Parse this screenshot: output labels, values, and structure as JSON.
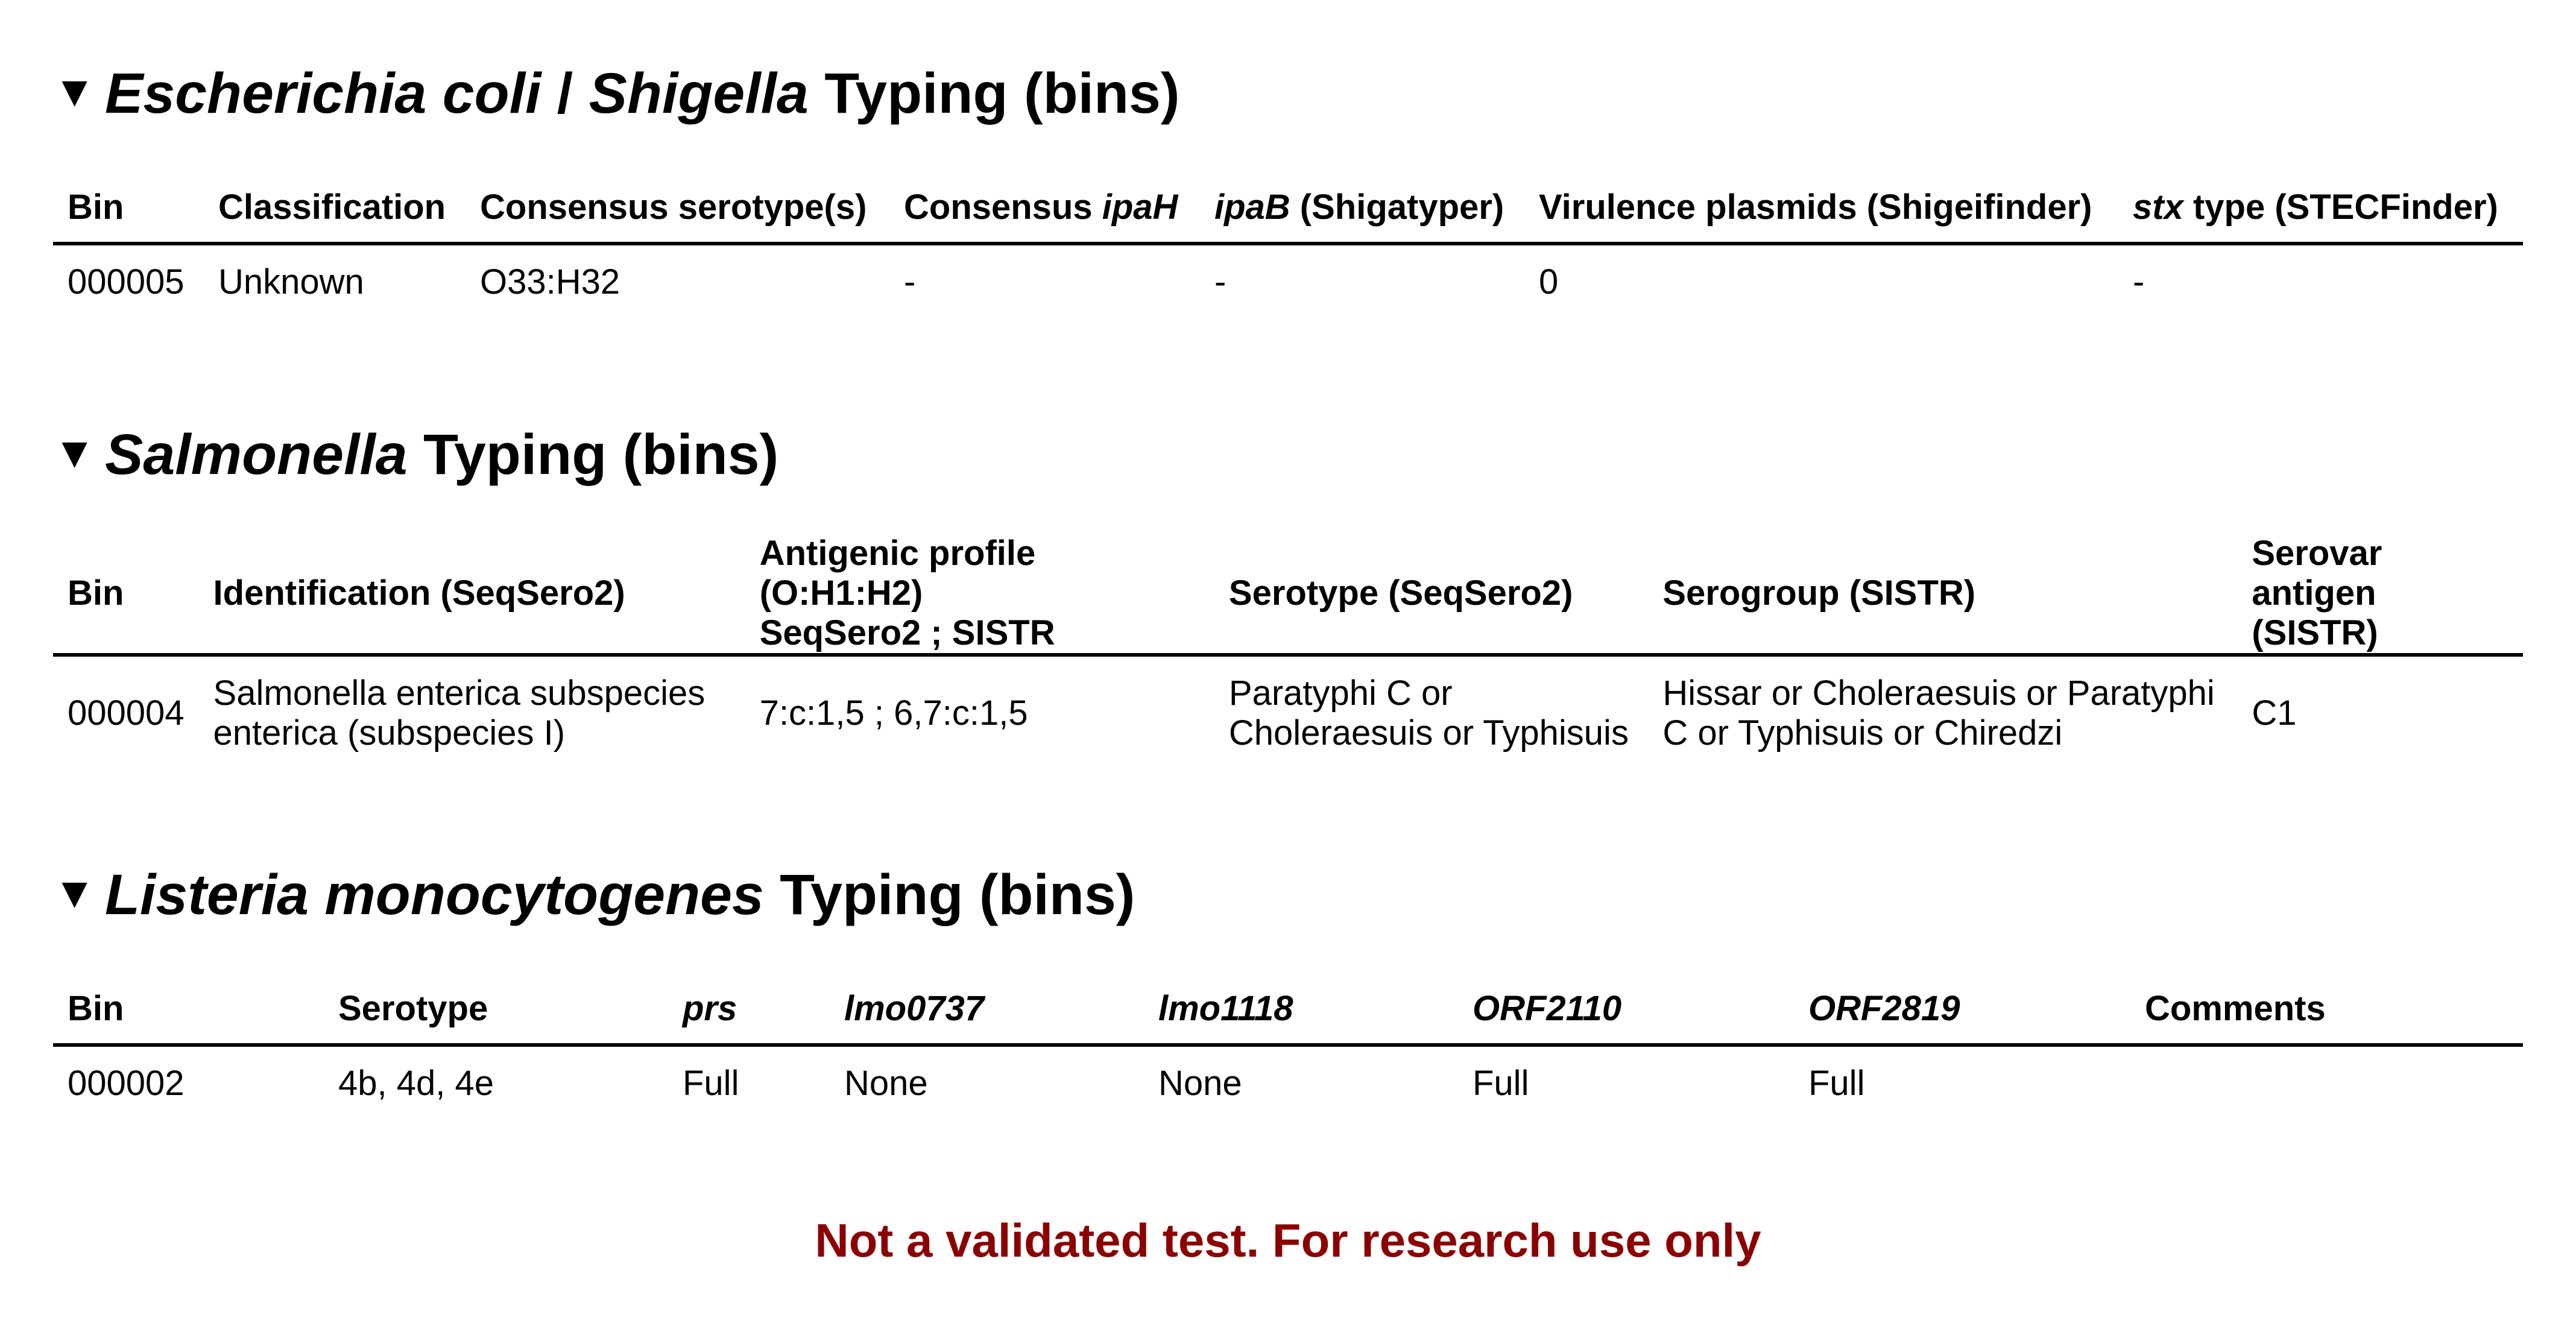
{
  "sections": {
    "ecoli": {
      "title_italic_1": "Escherichia coli",
      "title_sep": " / ",
      "title_italic_2": "Shigella",
      "title_rest": " Typing (bins)",
      "headers": {
        "bin": "Bin",
        "classification": "Classification",
        "serotype": "Consensus serotype(s)",
        "ipah_prefix": "Consensus ",
        "ipah_italic": "ipaH",
        "ipab_italic": "ipaB",
        "ipab_rest": " (Shigatyper)",
        "virulence": "Virulence plasmids (Shigeifinder)",
        "stx_italic": "stx",
        "stx_rest": " type (STECFinder)"
      },
      "rows": [
        {
          "bin": "000005",
          "classification": "Unknown",
          "serotype": "O33:H32",
          "ipah": "-",
          "ipab": "-",
          "virulence": "0",
          "stx": "-"
        }
      ]
    },
    "salmonella": {
      "title_italic": "Salmonella",
      "title_rest": " Typing (bins)",
      "headers": {
        "bin": "Bin",
        "identification": "Identification (SeqSero2)",
        "antigenic_line1": "Antigenic profile (O:H1:H2)",
        "antigenic_line2": "SeqSero2 ; SISTR",
        "serotype": "Serotype (SeqSero2)",
        "serogroup": "Serogroup (SISTR)",
        "serovar_line1": "Serovar",
        "serovar_line2": "antigen (SISTR)"
      },
      "rows": [
        {
          "bin": "000004",
          "identification": "Salmonella enterica subspecies enterica (subspecies I)",
          "antigenic": "7:c:1,5 ; 6,7:c:1,5",
          "serotype": "Paratyphi C or Choleraesuis or Typhisuis",
          "serogroup": "Hissar or Choleraesuis or Paratyphi C or Typhisuis or Chiredzi",
          "serovar": "C1"
        }
      ]
    },
    "listeria": {
      "title_italic": "Listeria monocytogenes",
      "title_rest": " Typing (bins)",
      "headers": {
        "bin": "Bin",
        "serotype": "Serotype",
        "prs": "prs",
        "lmo0737": "lmo0737",
        "lmo1118": "lmo1118",
        "orf2110": "ORF2110",
        "orf2819": "ORF2819",
        "comments": "Comments"
      },
      "rows": [
        {
          "bin": "000002",
          "serotype": "4b, 4d, 4e",
          "prs": "Full",
          "lmo0737": "None",
          "lmo1118": "None",
          "orf2110": "Full",
          "orf2819": "Full",
          "comments": ""
        }
      ]
    }
  },
  "footer": {
    "disclaimer": "Not a validated test. For research use only",
    "color": "#8b0000"
  },
  "icons": {
    "collapse": "▼"
  }
}
